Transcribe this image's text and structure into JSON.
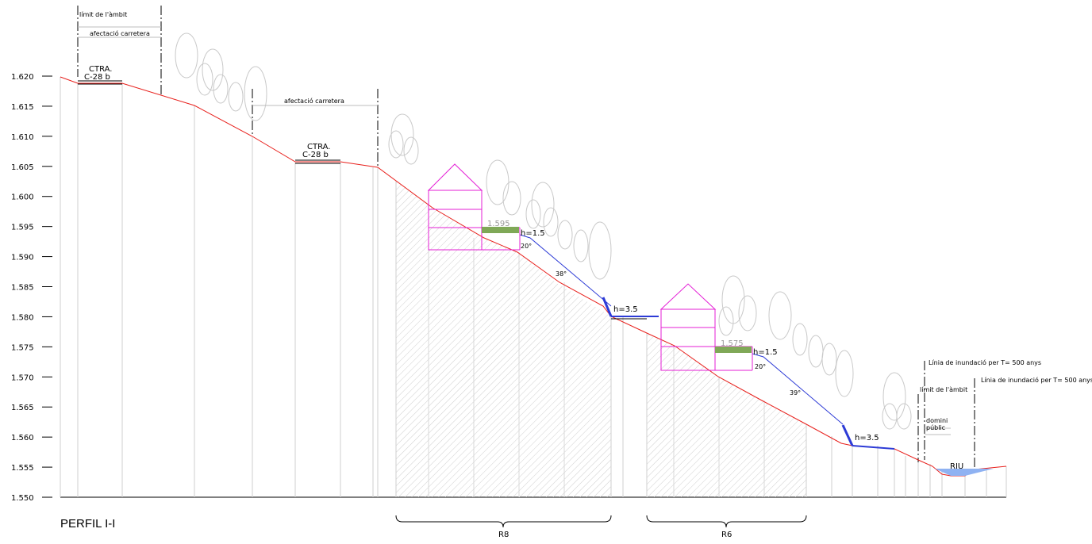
{
  "title": "PERFIL I-I",
  "axis": {
    "ticks": [
      "1.620",
      "1.615",
      "1.610",
      "1.605",
      "1.600",
      "1.595",
      "1.590",
      "1.585",
      "1.580",
      "1.575",
      "1.570",
      "1.565",
      "1.560",
      "1.555",
      "1.550"
    ]
  },
  "annotations": {
    "limit_ambit_1": "límit de l'àmbit",
    "afectacio_1": "afectació carretera",
    "afectacio_2": "afectació carretera",
    "ctra_1_a": "CTRA.",
    "ctra_1_b": "C-28 b",
    "ctra_2_a": "CTRA.",
    "ctra_2_b": "C-28 b",
    "level_1": "1.595",
    "h_1": "h=1.5",
    "angle_1a": "20°",
    "angle_1b": "38°",
    "h_2": "h=3.5",
    "level_2": "1.575",
    "h_3": "h=1.5",
    "angle_2a": "20°",
    "angle_2b": "39°",
    "h_4": "h=3.5",
    "flood_1": "Línia de inundació per T= 500 anys",
    "flood_2": "Línia de inundació per T= 500 anys",
    "limit_ambit_2": "límit de l'àmbit",
    "domini_a": "domini",
    "domini_b": "públic",
    "riu": "RIU",
    "zone_1": "R8",
    "zone_2": "R6"
  },
  "colors": {
    "terrain": "#e8201c",
    "slope": "#2d3bd6",
    "building": "#e41fd6",
    "green": "#7fa857",
    "water": "#8fb2f2",
    "tree": "#c9c9c9"
  }
}
